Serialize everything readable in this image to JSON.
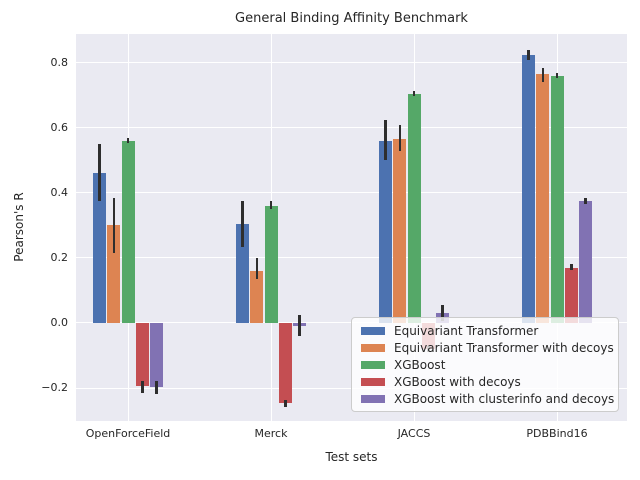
{
  "chart_data": {
    "type": "bar",
    "title": "General Binding Affinity Benchmark",
    "xlabel": "Test sets",
    "ylabel": "Pearson's R",
    "categories": [
      "OpenForceField",
      "Merck",
      "JACCS",
      "PDBBind16"
    ],
    "series": [
      {
        "name": "Equivariant Transformer",
        "color": "#4C72B0",
        "values": [
          0.46,
          0.305,
          0.56,
          0.825
        ],
        "errors": [
          [
            0.375,
            0.55
          ],
          [
            0.235,
            0.375
          ],
          [
            0.5,
            0.625
          ],
          [
            0.81,
            0.84
          ]
        ]
      },
      {
        "name": "Equivariant Transformer with decoys",
        "color": "#DD8452",
        "values": [
          0.3,
          0.16,
          0.565,
          0.765
        ],
        "errors": [
          [
            0.215,
            0.385
          ],
          [
            0.135,
            0.2
          ],
          [
            0.53,
            0.61
          ],
          [
            0.74,
            0.785
          ]
        ]
      },
      {
        "name": "XGBoost",
        "color": "#55A868",
        "values": [
          0.56,
          0.36,
          0.705,
          0.76
        ],
        "errors": [
          [
            0.553,
            0.568
          ],
          [
            0.35,
            0.375
          ],
          [
            0.697,
            0.715
          ],
          [
            0.753,
            0.77
          ]
        ]
      },
      {
        "name": "XGBoost with decoys",
        "color": "#C44E52",
        "values": [
          -0.195,
          -0.245,
          -0.08,
          0.17
        ],
        "errors": [
          [
            -0.215,
            -0.178
          ],
          [
            -0.258,
            -0.237
          ],
          [
            -0.09,
            -0.07
          ],
          [
            0.163,
            0.18
          ]
        ]
      },
      {
        "name": "XGBoost with clusterinfo and decoys",
        "color": "#8172B3",
        "values": [
          -0.197,
          -0.01,
          0.03,
          0.375
        ],
        "errors": [
          [
            -0.22,
            -0.177
          ],
          [
            -0.04,
            0.025
          ],
          [
            0.005,
            0.055
          ],
          [
            0.367,
            0.383
          ]
        ]
      }
    ],
    "yticks": [
      -0.2,
      0.0,
      0.2,
      0.4,
      0.6,
      0.8
    ],
    "ytick_labels": [
      "−0.2",
      "0.0",
      "0.2",
      "0.4",
      "0.6",
      "0.8"
    ],
    "ylim": [
      -0.3015,
      0.889
    ],
    "grid": true,
    "legend_position": "lower right",
    "plot_bg": "#EAEAF2",
    "grid_color": "#FFFFFF",
    "error_bar_color": "#2e2e2e"
  }
}
